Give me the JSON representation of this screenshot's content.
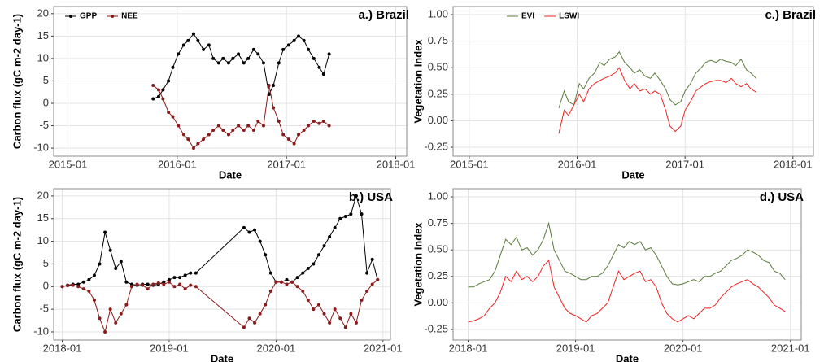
{
  "chart_data": [
    {
      "type": "line",
      "title": "a.) Brazil",
      "x_label": "Date",
      "y_label": "Carbon flux (gC m-2 day-1)",
      "markers": true,
      "grid": true,
      "legend": "upper left",
      "xlim": [
        2014.87,
        2018.1
      ],
      "xticks": [
        {
          "value": 2015,
          "label": "2015-01"
        },
        {
          "value": 2016,
          "label": "2016-01"
        },
        {
          "value": 2017,
          "label": "2017-01"
        },
        {
          "value": 2018,
          "label": "2018-01"
        }
      ],
      "ylim": [
        -11.8,
        21.6
      ],
      "yticks": [
        -10,
        -5,
        0,
        5,
        10,
        15,
        20
      ],
      "x": [
        2015.78,
        2015.83,
        2015.87,
        2015.92,
        2015.96,
        2016.01,
        2016.06,
        2016.1,
        2016.15,
        2016.19,
        2016.24,
        2016.29,
        2016.33,
        2016.38,
        2016.42,
        2016.47,
        2016.51,
        2016.56,
        2016.61,
        2016.65,
        2016.7,
        2016.74,
        2016.79,
        2016.84,
        2016.88,
        2016.93,
        2016.97,
        2017.02,
        2017.07,
        2017.11,
        2017.16,
        2017.2,
        2017.25,
        2017.3,
        2017.34,
        2017.39
      ],
      "series": [
        {
          "name": "GPP",
          "color": "#000000",
          "values": [
            1,
            1.5,
            3,
            5,
            8,
            11,
            13,
            14,
            15.5,
            14,
            12,
            13,
            10,
            9,
            10,
            9,
            10,
            11,
            9,
            10,
            12,
            11,
            9,
            2,
            4,
            9,
            12,
            13,
            14,
            15,
            14,
            12,
            10,
            8,
            6.5,
            11
          ]
        },
        {
          "name": "NEE",
          "color": "#8b1a1a",
          "values": [
            4,
            3,
            1,
            -2,
            -3,
            -5,
            -7,
            -8,
            -10,
            -9,
            -8,
            -7,
            -6,
            -5,
            -6,
            -7,
            -6,
            -5,
            -6,
            -5,
            -6,
            -4,
            -5,
            4,
            -1,
            -4,
            -7,
            -8,
            -9,
            -7,
            -6,
            -5,
            -4,
            -4.5,
            -4,
            -5
          ]
        }
      ]
    },
    {
      "type": "line",
      "title": "c.) Brazil",
      "x_label": "Date",
      "y_label": "Vegetation Index",
      "markers": false,
      "grid": true,
      "legend": "upper center",
      "xlim": [
        2014.85,
        2018.19
      ],
      "xticks": [
        {
          "value": 2015,
          "label": "2015-01"
        },
        {
          "value": 2016,
          "label": "2016-01"
        },
        {
          "value": 2017,
          "label": "2017-01"
        },
        {
          "value": 2018,
          "label": "2018-01"
        }
      ],
      "ylim": [
        -0.334,
        1.077
      ],
      "yticks": [
        {
          "value": -0.25,
          "label": "-0.25"
        },
        {
          "value": 0,
          "label": "0.00"
        },
        {
          "value": 0.25,
          "label": "0.25"
        },
        {
          "value": 0.5,
          "label": "0.50"
        },
        {
          "value": 0.75,
          "label": "0.75"
        },
        {
          "value": 1,
          "label": "1.00"
        }
      ],
      "x": [
        2015.83,
        2015.88,
        2015.92,
        2015.97,
        2016.02,
        2016.06,
        2016.11,
        2016.16,
        2016.21,
        2016.25,
        2016.3,
        2016.35,
        2016.39,
        2016.44,
        2016.49,
        2016.53,
        2016.58,
        2016.63,
        2016.68,
        2016.72,
        2016.77,
        2016.82,
        2016.86,
        2016.91,
        2016.96,
        2017.0,
        2017.05,
        2017.1,
        2017.15,
        2017.19,
        2017.24,
        2017.29,
        2017.33,
        2017.38,
        2017.43,
        2017.47,
        2017.52,
        2017.57,
        2017.61,
        2017.66
      ],
      "series": [
        {
          "name": "EVI",
          "color": "#5a7a3a",
          "values": [
            0.12,
            0.28,
            0.18,
            0.15,
            0.35,
            0.3,
            0.4,
            0.45,
            0.55,
            0.52,
            0.58,
            0.6,
            0.65,
            0.55,
            0.5,
            0.45,
            0.48,
            0.42,
            0.4,
            0.45,
            0.38,
            0.3,
            0.2,
            0.15,
            0.18,
            0.28,
            0.35,
            0.45,
            0.5,
            0.55,
            0.57,
            0.55,
            0.58,
            0.56,
            0.55,
            0.52,
            0.58,
            0.48,
            0.45,
            0.4
          ]
        },
        {
          "name": "LSWI",
          "color": "#ee2222",
          "values": [
            -0.12,
            0.1,
            0.05,
            0.15,
            0.25,
            0.18,
            0.3,
            0.35,
            0.38,
            0.4,
            0.42,
            0.45,
            0.5,
            0.38,
            0.3,
            0.35,
            0.28,
            0.3,
            0.25,
            0.28,
            0.25,
            0.1,
            -0.05,
            -0.1,
            -0.05,
            0.1,
            0.18,
            0.28,
            0.32,
            0.35,
            0.37,
            0.38,
            0.38,
            0.36,
            0.4,
            0.35,
            0.32,
            0.35,
            0.3,
            0.27
          ]
        }
      ]
    },
    {
      "type": "line",
      "title": "b.) USA",
      "x_label": "Date",
      "y_label": "Carbon flux (gC m-2 day-1)",
      "markers": true,
      "grid": true,
      "xlim": [
        2017.92,
        2021.07
      ],
      "xticks": [
        {
          "value": 2018,
          "label": "2018-01"
        },
        {
          "value": 2019,
          "label": "2019-01"
        },
        {
          "value": 2020,
          "label": "2020-01"
        },
        {
          "value": 2021,
          "label": "2021-01"
        }
      ],
      "ylim": [
        -11.8,
        21.6
      ],
      "yticks": [
        -10,
        -5,
        0,
        5,
        10,
        15,
        20
      ],
      "x": [
        2018.0,
        2018.05,
        2018.1,
        2018.15,
        2018.2,
        2018.25,
        2018.3,
        2018.35,
        2018.4,
        2018.45,
        2018.5,
        2018.55,
        2018.6,
        2018.65,
        2018.7,
        2018.75,
        2018.8,
        2018.85,
        2018.9,
        2018.95,
        2019.0,
        2019.05,
        2019.1,
        2019.15,
        2019.2,
        2019.25,
        2019.7,
        2019.75,
        2019.8,
        2019.85,
        2019.9,
        2019.95,
        2020.0,
        2020.05,
        2020.1,
        2020.15,
        2020.2,
        2020.25,
        2020.3,
        2020.35,
        2020.4,
        2020.45,
        2020.5,
        2020.55,
        2020.6,
        2020.65,
        2020.7,
        2020.75,
        2020.8,
        2020.85,
        2020.9,
        2020.95
      ],
      "series": [
        {
          "name": "GPP",
          "color": "#000000",
          "values": [
            0,
            0.3,
            0.5,
            0.5,
            1,
            1.5,
            2.5,
            5,
            12,
            8,
            4,
            5.5,
            1,
            0.5,
            0.3,
            0.5,
            0.5,
            0.3,
            0.5,
            1,
            1.5,
            2,
            2,
            2.5,
            3,
            3,
            13,
            12,
            12.5,
            10,
            7,
            3,
            1,
            1,
            1.5,
            1,
            2,
            3,
            4,
            5,
            7,
            9,
            11,
            13,
            15,
            15.5,
            16,
            20,
            16,
            3,
            6,
            1.5
          ]
        },
        {
          "name": "NEE",
          "color": "#8b1a1a",
          "values": [
            0,
            0.2,
            0.3,
            0,
            -0.5,
            -1,
            -3,
            -7,
            -10,
            -5,
            -8,
            -6,
            -4,
            0,
            0.5,
            0.3,
            -0.5,
            0.5,
            0.8,
            0.5,
            1,
            0,
            0.5,
            -0.5,
            0.3,
            0,
            -9,
            -7,
            -8,
            -6,
            -4,
            -1,
            1,
            1,
            0.5,
            1,
            0,
            -1,
            -3,
            -5,
            -4,
            -6,
            -8,
            -5,
            -7,
            -9,
            -6,
            -8,
            -3,
            -1,
            0.5,
            1.5
          ]
        }
      ]
    },
    {
      "type": "line",
      "title": "d.) USA",
      "x_label": "Date",
      "y_label": "Vegetation Index",
      "markers": false,
      "grid": true,
      "xlim": [
        2017.86,
        2021.1
      ],
      "xticks": [
        {
          "value": 2018,
          "label": "2018-01"
        },
        {
          "value": 2019,
          "label": "2019-01"
        },
        {
          "value": 2020,
          "label": "2020-01"
        },
        {
          "value": 2021,
          "label": "2021-01"
        }
      ],
      "ylim": [
        -0.35,
        1.077
      ],
      "yticks": [
        {
          "value": -0.25,
          "label": "-0.25"
        },
        {
          "value": 0,
          "label": "0.00"
        },
        {
          "value": 0.25,
          "label": "0.25"
        },
        {
          "value": 0.5,
          "label": "0.50"
        },
        {
          "value": 0.75,
          "label": "0.75"
        },
        {
          "value": 1,
          "label": "1.00"
        }
      ],
      "x": [
        2018.0,
        2018.05,
        2018.1,
        2018.15,
        2018.2,
        2018.25,
        2018.3,
        2018.35,
        2018.4,
        2018.45,
        2018.5,
        2018.55,
        2018.6,
        2018.65,
        2018.7,
        2018.75,
        2018.8,
        2018.85,
        2018.9,
        2018.95,
        2019.0,
        2019.05,
        2019.1,
        2019.15,
        2019.2,
        2019.25,
        2019.3,
        2019.35,
        2019.4,
        2019.45,
        2019.5,
        2019.55,
        2019.6,
        2019.65,
        2019.7,
        2019.75,
        2019.8,
        2019.85,
        2019.9,
        2019.95,
        2020.0,
        2020.05,
        2020.1,
        2020.15,
        2020.2,
        2020.25,
        2020.3,
        2020.35,
        2020.4,
        2020.45,
        2020.5,
        2020.55,
        2020.6,
        2020.65,
        2020.7,
        2020.75,
        2020.8,
        2020.85,
        2020.9,
        2020.95
      ],
      "series": [
        {
          "name": "EVI",
          "color": "#5a7a3a",
          "values": [
            0.15,
            0.15,
            0.18,
            0.2,
            0.22,
            0.3,
            0.45,
            0.6,
            0.55,
            0.62,
            0.5,
            0.52,
            0.45,
            0.5,
            0.6,
            0.75,
            0.5,
            0.4,
            0.3,
            0.28,
            0.25,
            0.22,
            0.22,
            0.25,
            0.25,
            0.28,
            0.35,
            0.45,
            0.55,
            0.52,
            0.58,
            0.55,
            0.58,
            0.5,
            0.52,
            0.45,
            0.35,
            0.25,
            0.18,
            0.17,
            0.18,
            0.2,
            0.22,
            0.2,
            0.25,
            0.25,
            0.28,
            0.3,
            0.35,
            0.4,
            0.42,
            0.45,
            0.5,
            0.48,
            0.45,
            0.4,
            0.38,
            0.3,
            0.28,
            0.22
          ]
        },
        {
          "name": "LSWI",
          "color": "#ee2222",
          "values": [
            -0.18,
            -0.17,
            -0.15,
            -0.12,
            -0.05,
            0.0,
            0.1,
            0.25,
            0.2,
            0.3,
            0.22,
            0.25,
            0.2,
            0.25,
            0.35,
            0.4,
            0.15,
            0.05,
            -0.05,
            -0.1,
            -0.12,
            -0.15,
            -0.18,
            -0.12,
            -0.1,
            -0.05,
            0.0,
            0.15,
            0.3,
            0.22,
            0.25,
            0.28,
            0.3,
            0.2,
            0.22,
            0.15,
            0.0,
            -0.1,
            -0.15,
            -0.18,
            -0.15,
            -0.12,
            -0.15,
            -0.1,
            -0.05,
            -0.05,
            -0.02,
            0.05,
            0.1,
            0.15,
            0.18,
            0.2,
            0.22,
            0.18,
            0.15,
            0.1,
            0.05,
            -0.02,
            -0.05,
            -0.08
          ]
        }
      ]
    }
  ]
}
